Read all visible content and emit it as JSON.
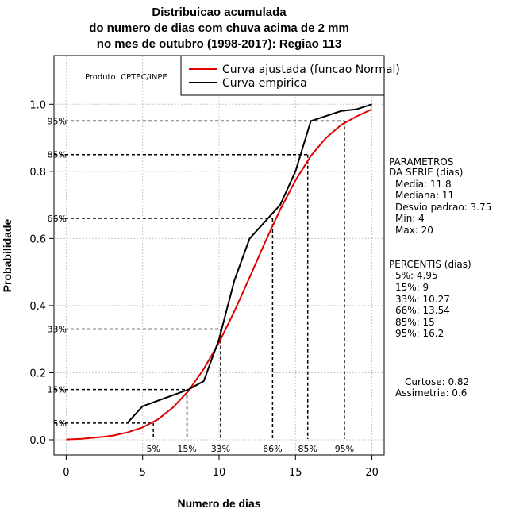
{
  "chart_data": {
    "type": "line",
    "title_lines": [
      "Distribuicao acumulada",
      "do numero de dias com chuva acima de 2 mm",
      "no mes de outubro (1998-2017): Regiao 113"
    ],
    "xlabel": "Numero de dias",
    "ylabel": "Probabilidade",
    "xlim": [
      -0.8,
      20.8
    ],
    "ylim": [
      -0.045,
      1.145
    ],
    "x_ticks": [
      0,
      5,
      10,
      15,
      20
    ],
    "x_tick_labels": [
      "0",
      "5",
      "10",
      "15",
      "20"
    ],
    "y_ticks": [
      0.0,
      0.2,
      0.4,
      0.6,
      0.8,
      1.0
    ],
    "y_tick_labels": [
      "0.0",
      "0.2",
      "0.4",
      "0.6",
      "0.8",
      "1.0"
    ],
    "grid": true,
    "credit": "Produto: CPTEC/INPE",
    "legend": {
      "position": "top-right",
      "entries": [
        {
          "label": "Curva ajustada (funcao Normal)",
          "color": "#e00000"
        },
        {
          "label": "Curva empirica",
          "color": "#000000"
        }
      ]
    },
    "series": [
      {
        "name": "Curva ajustada (funcao Normal)",
        "color": "#e00000",
        "x": [
          0,
          1,
          2,
          3,
          4,
          5,
          6,
          7,
          8,
          9,
          10,
          11,
          12,
          13,
          14,
          15,
          16,
          17,
          18,
          19,
          20
        ],
        "y": [
          0.001,
          0.003,
          0.007,
          0.012,
          0.022,
          0.037,
          0.061,
          0.097,
          0.146,
          0.211,
          0.29,
          0.383,
          0.484,
          0.588,
          0.686,
          0.773,
          0.846,
          0.9,
          0.939,
          0.964,
          0.985
        ]
      },
      {
        "name": "Curva empirica",
        "color": "#000000",
        "x": [
          4,
          5,
          8,
          9,
          10,
          11,
          12,
          13,
          14,
          15,
          16,
          17,
          18,
          19,
          20
        ],
        "y": [
          0.05,
          0.1,
          0.15,
          0.175,
          0.3,
          0.475,
          0.6,
          0.65,
          0.7,
          0.8,
          0.95,
          0.965,
          0.98,
          0.985,
          1.0
        ]
      }
    ],
    "percentile_lines": [
      {
        "label": "5%",
        "p": 0.05,
        "x": 5.7
      },
      {
        "label": "15%",
        "p": 0.15,
        "x": 7.9
      },
      {
        "label": "33%",
        "p": 0.33,
        "x": 10.1
      },
      {
        "label": "66%",
        "p": 0.66,
        "x": 13.5
      },
      {
        "label": "85%",
        "p": 0.85,
        "x": 15.8
      },
      {
        "label": "95%",
        "p": 0.95,
        "x": 18.2
      }
    ]
  },
  "side_panel": {
    "parametros_title_1": "PARAMETROS",
    "parametros_title_2": "DA SERIE (dias)",
    "media": "Media: 11.8",
    "mediana": "Mediana: 11",
    "desvio": "Desvio padrao: 3.75",
    "min": "Min: 4",
    "max": "Max: 20",
    "percentis_title": "PERCENTIS (dias)",
    "p5": "5%: 4.95",
    "p15": "15%: 9",
    "p33": "33%: 10.27",
    "p66": "66%: 13.54",
    "p85": "85%: 15",
    "p95": "95%: 16.2",
    "curtose": "Curtose: 0.82",
    "assimetria": "Assimetria: 0.6"
  }
}
